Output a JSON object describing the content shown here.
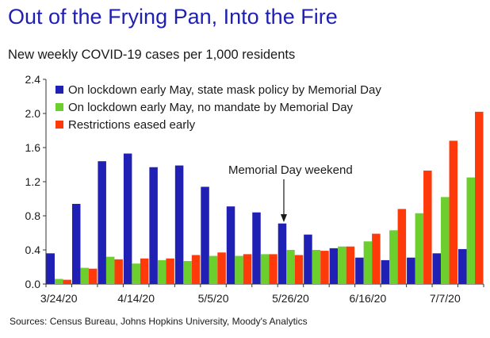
{
  "title": "Out of the Frying Pan, Into the Fire",
  "subtitle": "New weekly COVID-19 cases per 1,000 residents",
  "source": "Sources: Census Bureau, Johns Hopkins University, Moody's Analytics",
  "colors": {
    "series1": "#2020b4",
    "series2": "#6ccf2e",
    "series3": "#ff3a0a"
  },
  "chart_data": {
    "type": "bar",
    "categories": [
      "3/24/20",
      "3/31/20",
      "4/7/20",
      "4/14/20",
      "4/21/20",
      "4/28/20",
      "5/5/20",
      "5/12/20",
      "5/19/20",
      "5/26/20",
      "6/2/20",
      "6/9/20",
      "6/16/20",
      "6/23/20",
      "6/30/20",
      "7/7/20",
      "7/14/20"
    ],
    "tick_labels": [
      "3/24/20",
      "4/14/20",
      "5/5/20",
      "5/26/20",
      "6/16/20",
      "7/7/20"
    ],
    "tick_label_indices": [
      0,
      3,
      6,
      9,
      12,
      15
    ],
    "series": [
      {
        "name": "On lockdown early May, state mask policy by Memorial Day",
        "values": [
          0.36,
          0.94,
          1.44,
          1.53,
          1.37,
          1.39,
          1.14,
          0.91,
          0.84,
          0.71,
          0.58,
          0.42,
          0.31,
          0.28,
          0.31,
          0.36,
          0.41
        ]
      },
      {
        "name": "On lockdown early May, no mandate by Memorial Day",
        "values": [
          0.06,
          0.19,
          0.32,
          0.24,
          0.28,
          0.27,
          0.33,
          0.33,
          0.35,
          0.4,
          0.4,
          0.44,
          0.5,
          0.63,
          0.83,
          1.02,
          1.25
        ]
      },
      {
        "name": "Restrictions eased early",
        "values": [
          0.05,
          0.18,
          0.29,
          0.3,
          0.3,
          0.34,
          0.37,
          0.35,
          0.35,
          0.34,
          0.39,
          0.44,
          0.59,
          0.88,
          1.33,
          1.68,
          2.02
        ]
      }
    ],
    "ylim": [
      0,
      2.4
    ],
    "yticks": [
      "0.0",
      "0.4",
      "0.8",
      "1.2",
      "1.6",
      "2.0",
      "2.4"
    ],
    "annotation": {
      "text": "Memorial Day weekend",
      "category_index": 9
    },
    "legend_position": "top-left",
    "grid": false
  }
}
